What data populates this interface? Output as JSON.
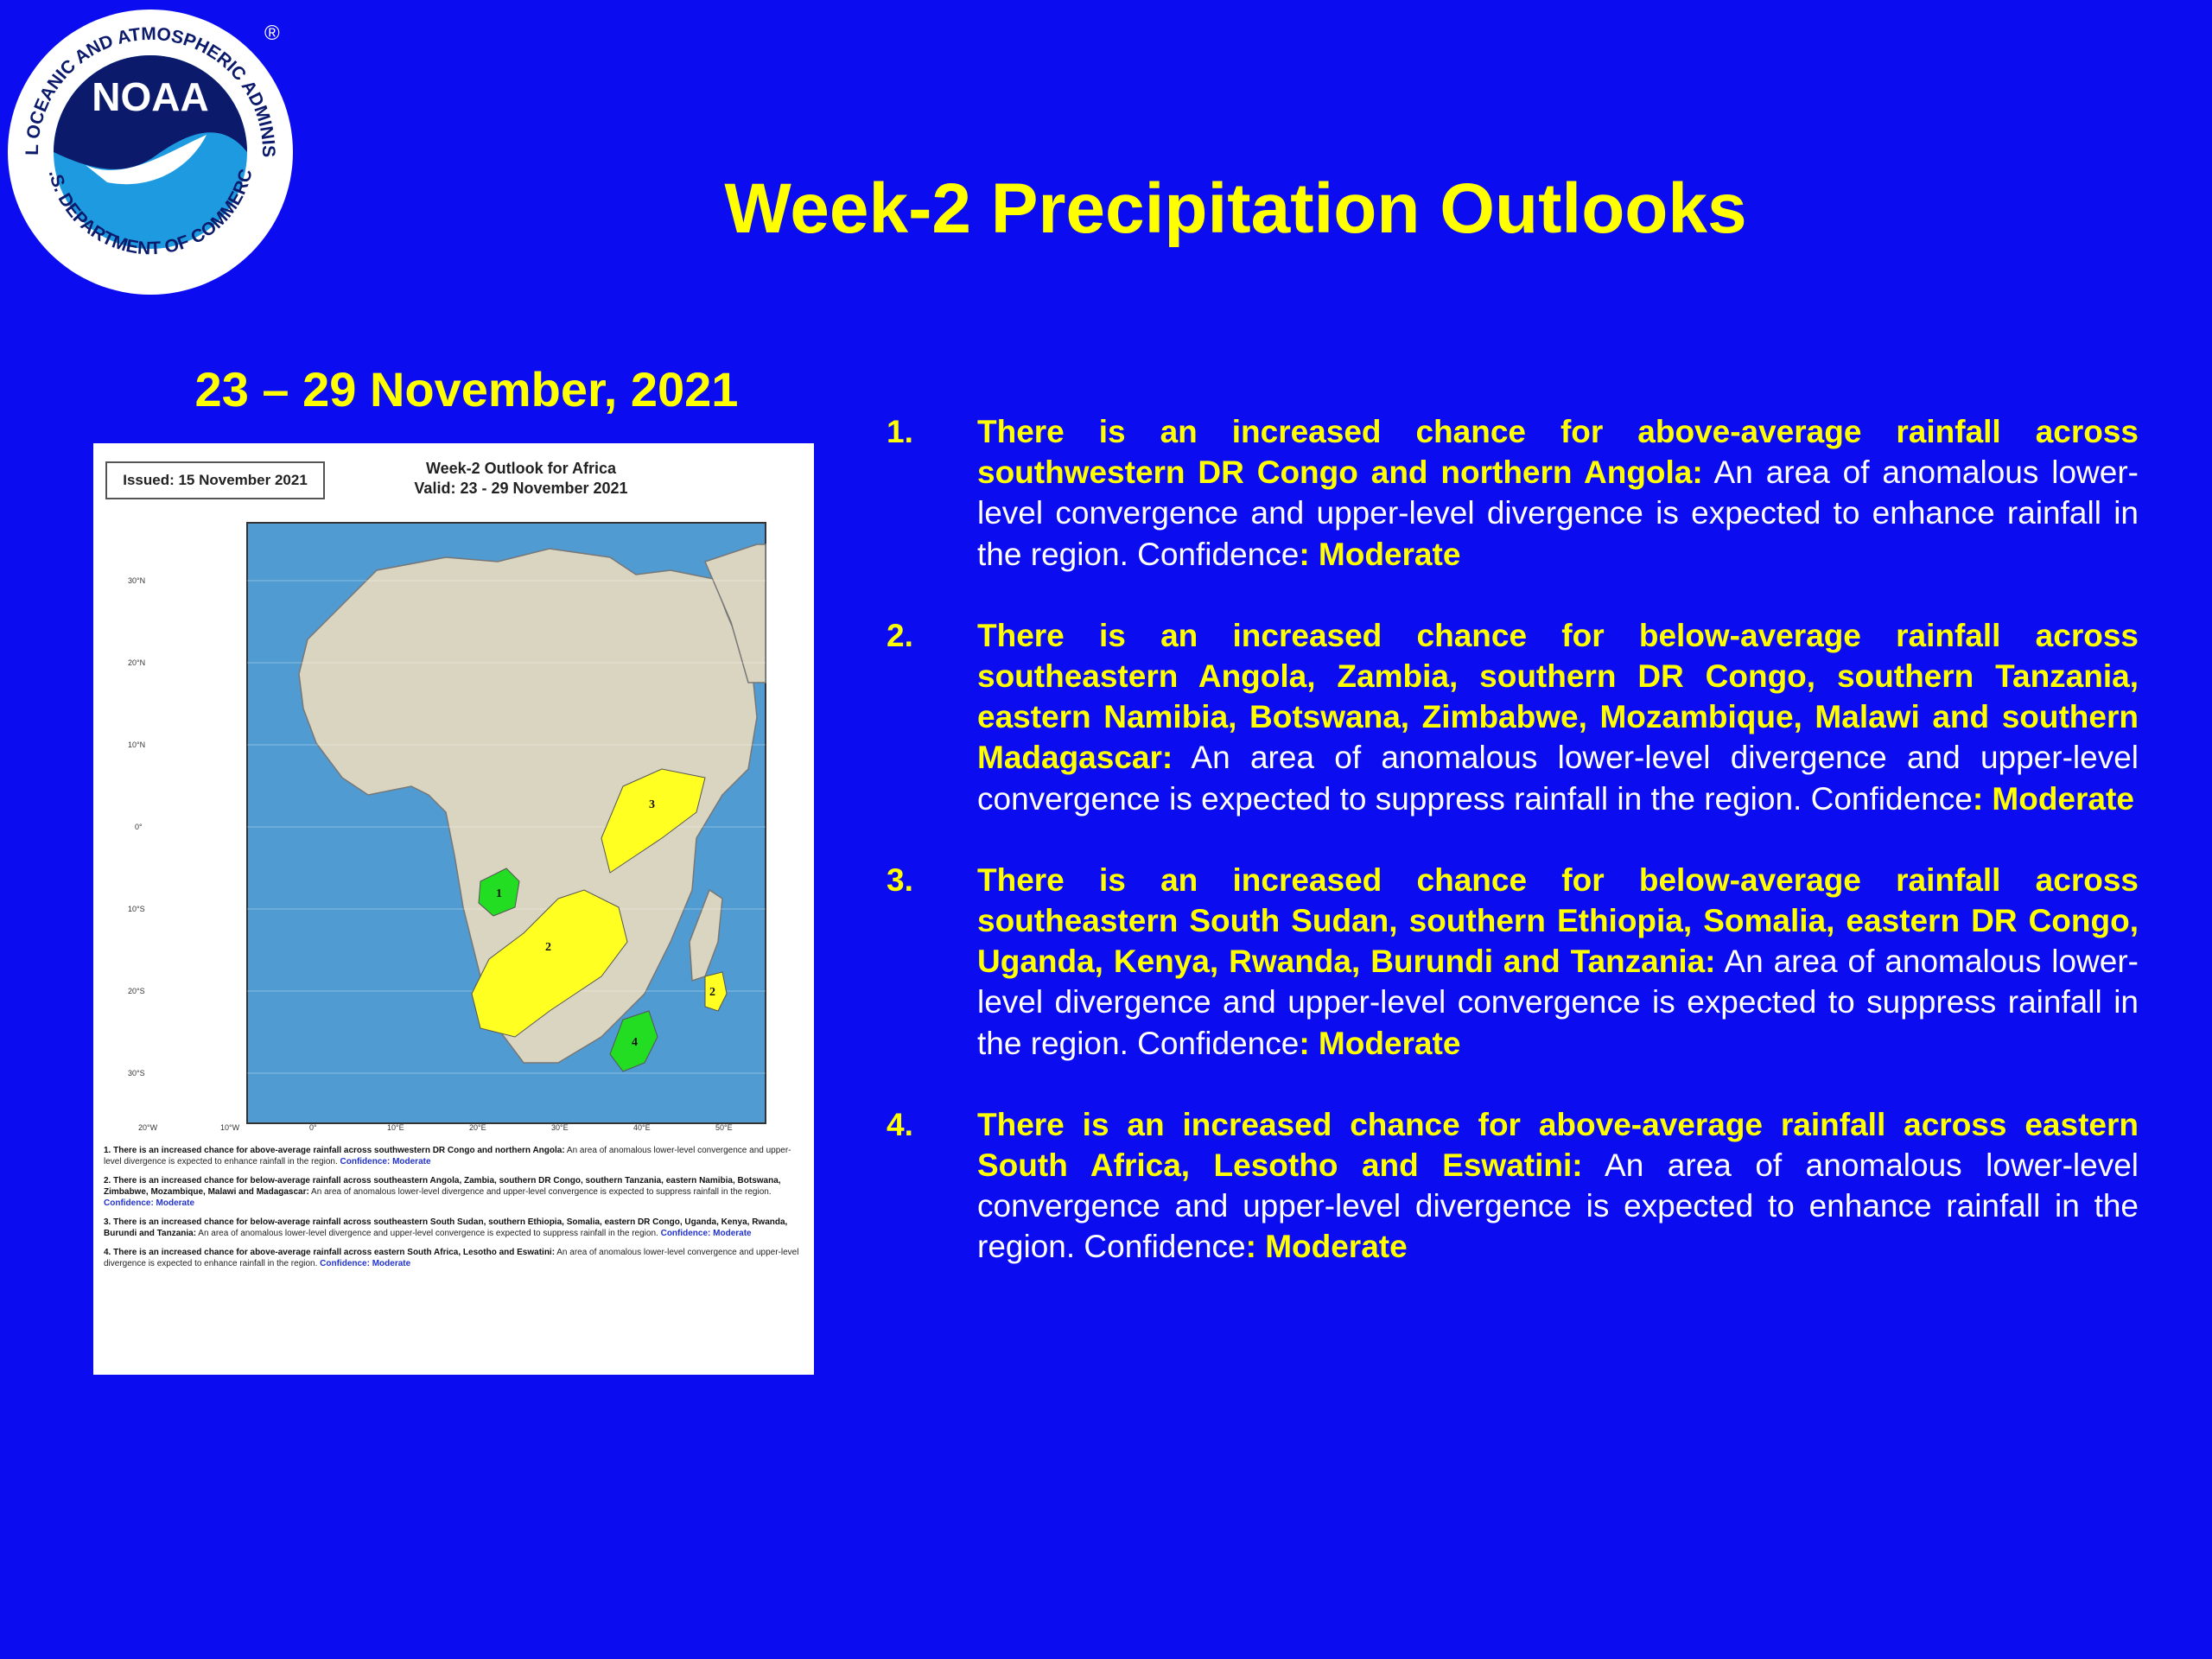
{
  "header": {
    "title": "Week-2 Precipitation Outlooks",
    "logo": {
      "text": "NOAA",
      "ring_top": "NATIONAL OCEANIC AND ATMOSPHERIC ADMINISTRATION",
      "ring_bottom": "U.S. DEPARTMENT OF COMMERCE",
      "registered": "®"
    }
  },
  "date_range": "23 – 29 November, 2021",
  "figure": {
    "issued": "Issued: 15 November 2021",
    "title_line1": "Week-2 Outlook for Africa",
    "title_line2": "Valid: 23 - 29 November 2021",
    "map": {
      "lat_labels": [
        "30°N",
        "20°N",
        "10°N",
        "0°",
        "10°S",
        "20°S",
        "30°S"
      ],
      "lon_labels": [
        "20°W",
        "10°W",
        "0°",
        "10°E",
        "20°E",
        "30°E",
        "40°E",
        "50°E"
      ],
      "colors": {
        "ocean": "#4f9bd2",
        "land": "#d9d5c0",
        "above_average": "#22dd22",
        "below_average": "#ffff22"
      },
      "region_labels": [
        "1",
        "2",
        "2",
        "3",
        "4"
      ]
    },
    "notes": [
      {
        "head": "1. There is an increased chance for above-average rainfall across southwestern DR Congo and northern Angola:",
        "body": " An area of anomalous lower-level convergence and upper-level divergence is expected to enhance rainfall in the region.",
        "conf": " Confidence: Moderate"
      },
      {
        "head": "2. There is an increased chance for below-average rainfall across southeastern Angola, Zambia, southern DR Congo, southern Tanzania, eastern Namibia, Botswana, Zimbabwe, Mozambique, Malawi and Madagascar:",
        "body": " An area of anomalous lower-level divergence and upper-level convergence is expected to suppress rainfall in the region.",
        "conf": " Confidence: Moderate"
      },
      {
        "head": "3. There is an increased chance for below-average rainfall across southeastern South Sudan, southern Ethiopia, Somalia, eastern DR Congo, Uganda, Kenya, Rwanda, Burundi and Tanzania:",
        "body": " An area of anomalous lower-level divergence and upper-level convergence is expected to suppress rainfall in the region.",
        "conf": " Confidence: Moderate"
      },
      {
        "head": "4. There is an increased chance for above-average rainfall across eastern South Africa, Lesotho and Eswatini:",
        "body": " An area of anomalous lower-level convergence and upper-level divergence is expected to enhance rainfall in the region.",
        "conf": " Confidence: Moderate"
      }
    ]
  },
  "outlook_items": [
    {
      "number": "1.",
      "head": "There is an increased chance for above-average rainfall across southwestern DR Congo and northern Angola:",
      "body": " An area of anomalous lower-level convergence and upper-level divergence is expected to enhance rainfall in the region. Confidence",
      "conf": ": Moderate"
    },
    {
      "number": "2.",
      "head": "There is an increased chance for below-average rainfall across southeastern Angola, Zambia, southern DR Congo, southern Tanzania, eastern Namibia, Botswana, Zimbabwe, Mozambique, Malawi and southern Madagascar:",
      "body": " An area of anomalous lower-level divergence and upper-level convergence is expected to suppress rainfall in the region. Confidence",
      "conf": ": Moderate"
    },
    {
      "number": "3.",
      "head": "There is an increased chance for below-average rainfall across southeastern South Sudan, southern Ethiopia, Somalia, eastern DR Congo, Uganda, Kenya, Rwanda, Burundi and Tanzania:",
      "body": " An area of anomalous lower-level divergence and upper-level convergence is expected to suppress rainfall in the region. Confidence",
      "conf": ": Moderate"
    },
    {
      "number": "4.",
      "head": "There is an increased chance for above-average rainfall across eastern South Africa, Lesotho and Eswatini:",
      "body": " An area of anomalous lower-level convergence and upper-level divergence is expected to enhance rainfall in the region. Confidence",
      "conf": ": Moderate"
    }
  ],
  "colors": {
    "background": "#0b0cf0",
    "accent": "#ffff00",
    "text": "#ffffff"
  }
}
